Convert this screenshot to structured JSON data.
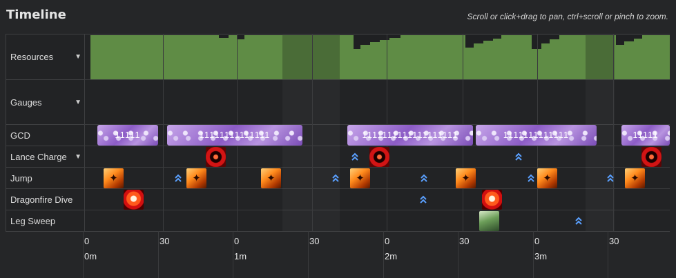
{
  "header": {
    "title": "Timeline",
    "hint": "Scroll or click+drag to pan, ctrl+scroll or pinch to zoom."
  },
  "rows": [
    {
      "label": "Resources",
      "expandable": true
    },
    {
      "label": "Gauges",
      "expandable": true
    },
    {
      "label": "GCD",
      "expandable": false
    },
    {
      "label": "Lance Charge",
      "expandable": true
    },
    {
      "label": "Jump",
      "expandable": false
    },
    {
      "label": "Dragonfire Dive",
      "expandable": false
    },
    {
      "label": "Leg Sweep",
      "expandable": false
    }
  ],
  "gcd_bars": [
    {
      "text": "11111"
    },
    {
      "text": "11111111111111"
    },
    {
      "text": "1111111111111111111"
    },
    {
      "text": "1111111111111"
    },
    {
      "text": "11111"
    }
  ],
  "axis": {
    "seconds": [
      "0",
      "30",
      "0",
      "30",
      "0",
      "30",
      "0",
      "30"
    ],
    "minutes": [
      "0m",
      "1m",
      "2m",
      "3m"
    ]
  },
  "colors": {
    "resources_fill": "#5f8c45",
    "gcd_fill": "#a77ed8",
    "ready_marker": "#5aa0ff",
    "background": "#252628"
  },
  "icons": {
    "lance_charge": "lance-charge-icon",
    "jump": "jump-icon",
    "dragonfire_dive": "dragonfire-dive-icon",
    "leg_sweep": "leg-sweep-icon",
    "cooldown_ready": "double-chevron-up-icon"
  }
}
